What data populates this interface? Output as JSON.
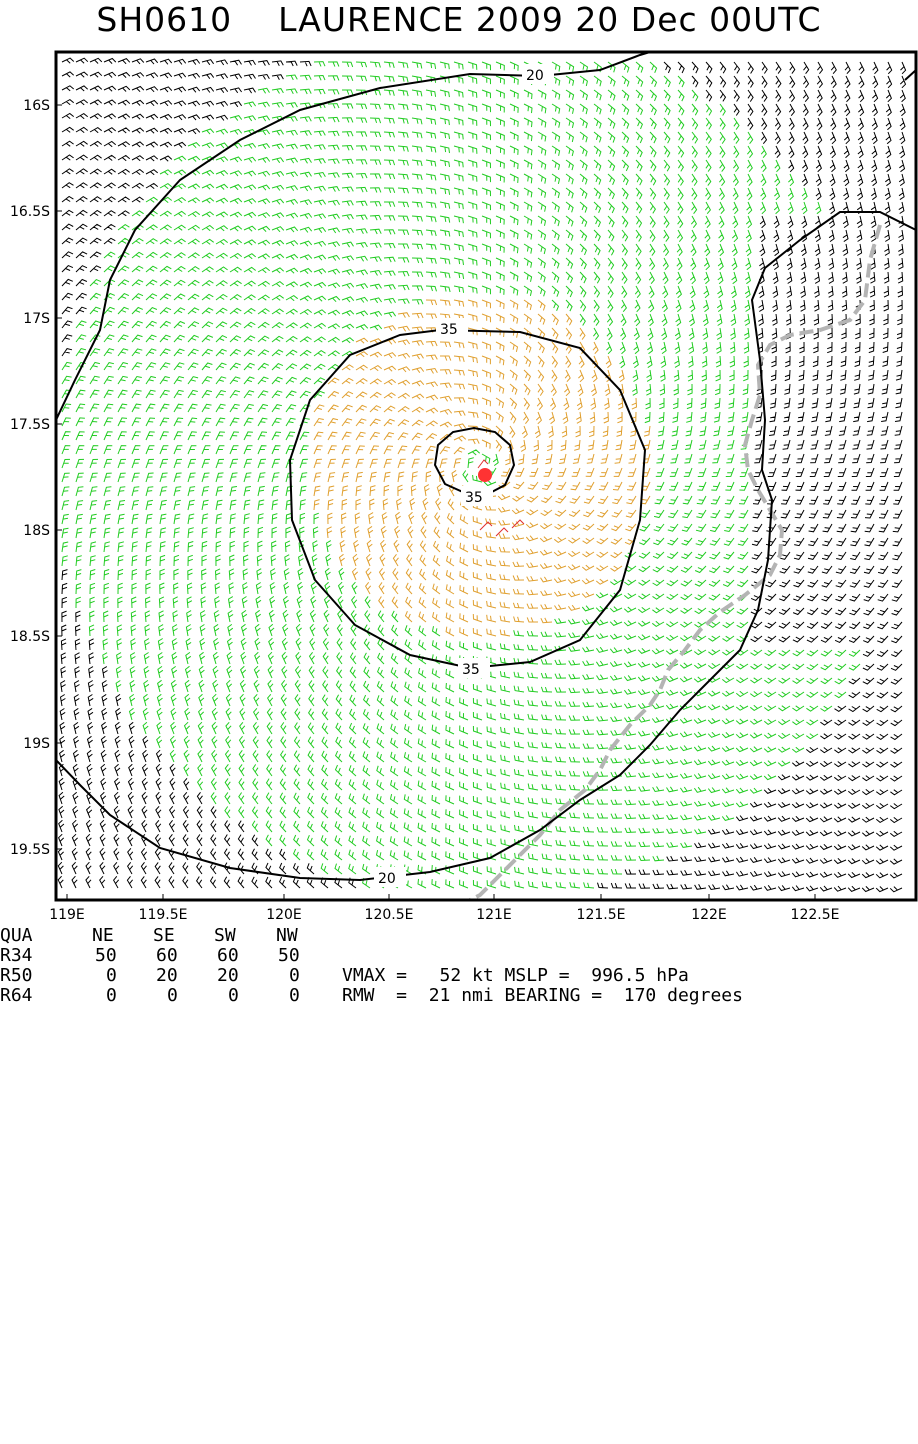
{
  "title": "SH0610    LAURENCE 2009 20 Dec 00UTC",
  "map": {
    "lon_ticks": [
      "119E",
      "119.5E",
      "120E",
      "120.5E",
      "121E",
      "121.5E",
      "122E",
      "122.5E"
    ],
    "lat_ticks": [
      "16S",
      "16.5S",
      "17S",
      "17.5S",
      "18S",
      "18.5S",
      "19S",
      "19.5S"
    ],
    "contour_labels": [
      "20",
      "35",
      "35",
      "35",
      "20"
    ],
    "colors": {
      "barb_low": "#000000",
      "barb_34kt": "#22cc22",
      "barb_50kt": "#e0a030",
      "barb_64kt": "#e03030",
      "storm_center": "#ff3333",
      "coastline": "#b4b4b4"
    }
  },
  "table": {
    "headers": [
      "QUA",
      "NE",
      "SE",
      "SW",
      "NW"
    ],
    "rows": [
      [
        "R34",
        "50",
        "60",
        "60",
        "50"
      ],
      [
        "R50",
        "0",
        "20",
        "20",
        "0"
      ],
      [
        "R64",
        "0",
        "0",
        "0",
        "0"
      ]
    ],
    "vmax_line": "VMAX =   52 kt MSLP =  996.5 hPa",
    "rmw_line": "RMW  =  21 nmi BEARING =  170 degrees"
  }
}
